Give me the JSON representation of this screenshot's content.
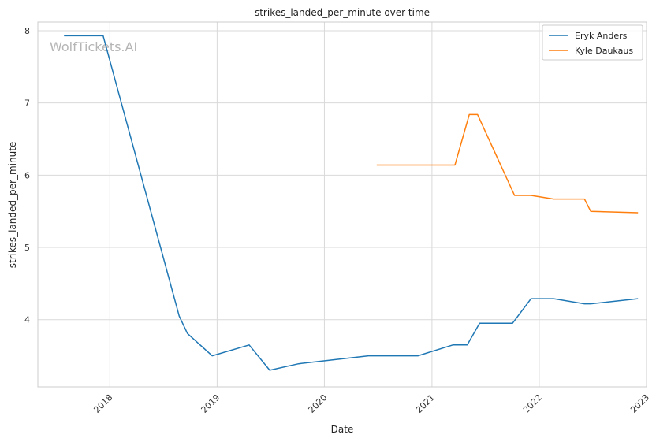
{
  "chart_data": {
    "type": "line",
    "title": "strikes_landed_per_minute over time",
    "xlabel": "Date",
    "ylabel": "strikes_landed_per_minute",
    "x_ticks": [
      "2018",
      "2019",
      "2020",
      "2021",
      "2022",
      "2023"
    ],
    "y_ticks": [
      4,
      5,
      6,
      7,
      8
    ],
    "xlim": [
      "2017-05-01",
      "2023-01-01"
    ],
    "ylim": [
      3.07,
      8.12
    ],
    "grid": true,
    "legend_position": "top-right",
    "watermark": "WolfTickets.AI",
    "series": [
      {
        "name": "Eryk Anders",
        "color": "#1f77b4",
        "points": [
          [
            "2017-07-29",
            7.93
          ],
          [
            "2017-12-09",
            7.93
          ],
          [
            "2018-08-25",
            4.05
          ],
          [
            "2018-09-22",
            3.81
          ],
          [
            "2018-12-15",
            3.5
          ],
          [
            "2019-04-20",
            3.65
          ],
          [
            "2019-06-29",
            3.3
          ],
          [
            "2019-10-05",
            3.39
          ],
          [
            "2020-05-30",
            3.5
          ],
          [
            "2020-11-14",
            3.5
          ],
          [
            "2021-03-13",
            3.65
          ],
          [
            "2021-05-01",
            3.65
          ],
          [
            "2021-06-12",
            3.95
          ],
          [
            "2021-10-02",
            3.95
          ],
          [
            "2021-12-04",
            4.29
          ],
          [
            "2022-02-19",
            4.29
          ],
          [
            "2022-06-04",
            4.22
          ],
          [
            "2022-06-25",
            4.22
          ],
          [
            "2022-12-03",
            4.29
          ]
        ]
      },
      {
        "name": "Kyle Daukaus",
        "color": "#ff7f0e",
        "points": [
          [
            "2020-06-27",
            6.14
          ],
          [
            "2021-03-20",
            6.14
          ],
          [
            "2021-05-08",
            6.84
          ],
          [
            "2021-06-05",
            6.84
          ],
          [
            "2021-10-09",
            5.72
          ],
          [
            "2021-12-04",
            5.72
          ],
          [
            "2022-02-19",
            5.67
          ],
          [
            "2022-06-04",
            5.67
          ],
          [
            "2022-06-25",
            5.5
          ],
          [
            "2022-12-03",
            5.48
          ]
        ]
      }
    ]
  }
}
